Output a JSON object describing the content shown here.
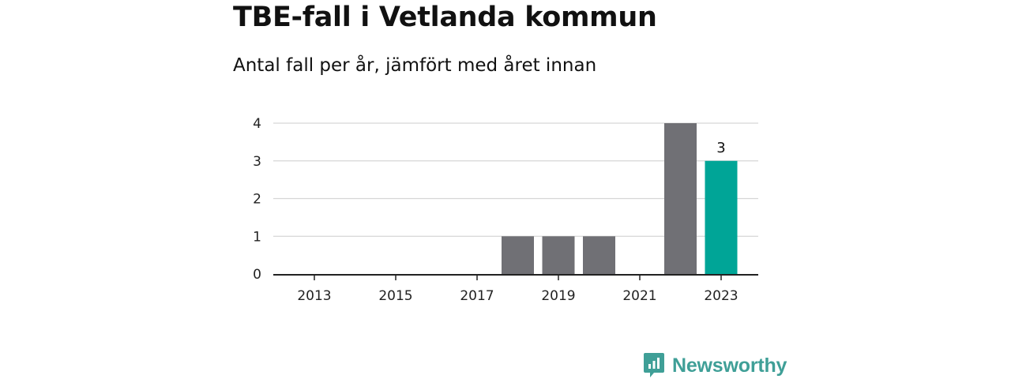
{
  "title": "TBE-fall i Vetlanda kommun",
  "subtitle": "Antal fall per år, jämfört med året innan",
  "brand": {
    "name": "Newsworthy",
    "icon": "newsworthy-logo-icon",
    "color": "#3f9f97"
  },
  "chart_data": {
    "type": "bar",
    "title": "TBE-fall i Vetlanda kommun",
    "subtitle": "Antal fall per år, jämfört med året innan",
    "xlabel": "",
    "ylabel": "",
    "categories": [
      "2013",
      "2014",
      "2015",
      "2016",
      "2017",
      "2018",
      "2019",
      "2020",
      "2021",
      "2022",
      "2023"
    ],
    "x_tick_labels": [
      "2013",
      "2015",
      "2017",
      "2019",
      "2021",
      "2023"
    ],
    "values": [
      0,
      0,
      0,
      0,
      0,
      1,
      1,
      1,
      0,
      4,
      3
    ],
    "ylim": [
      0,
      4
    ],
    "y_ticks": [
      0,
      1,
      2,
      3,
      4
    ],
    "grid": true,
    "colors": {
      "default": "#707075",
      "highlight": "#00a597"
    },
    "highlight_category": "2023",
    "data_labels": [
      {
        "category": "2023",
        "text": "3"
      }
    ]
  }
}
